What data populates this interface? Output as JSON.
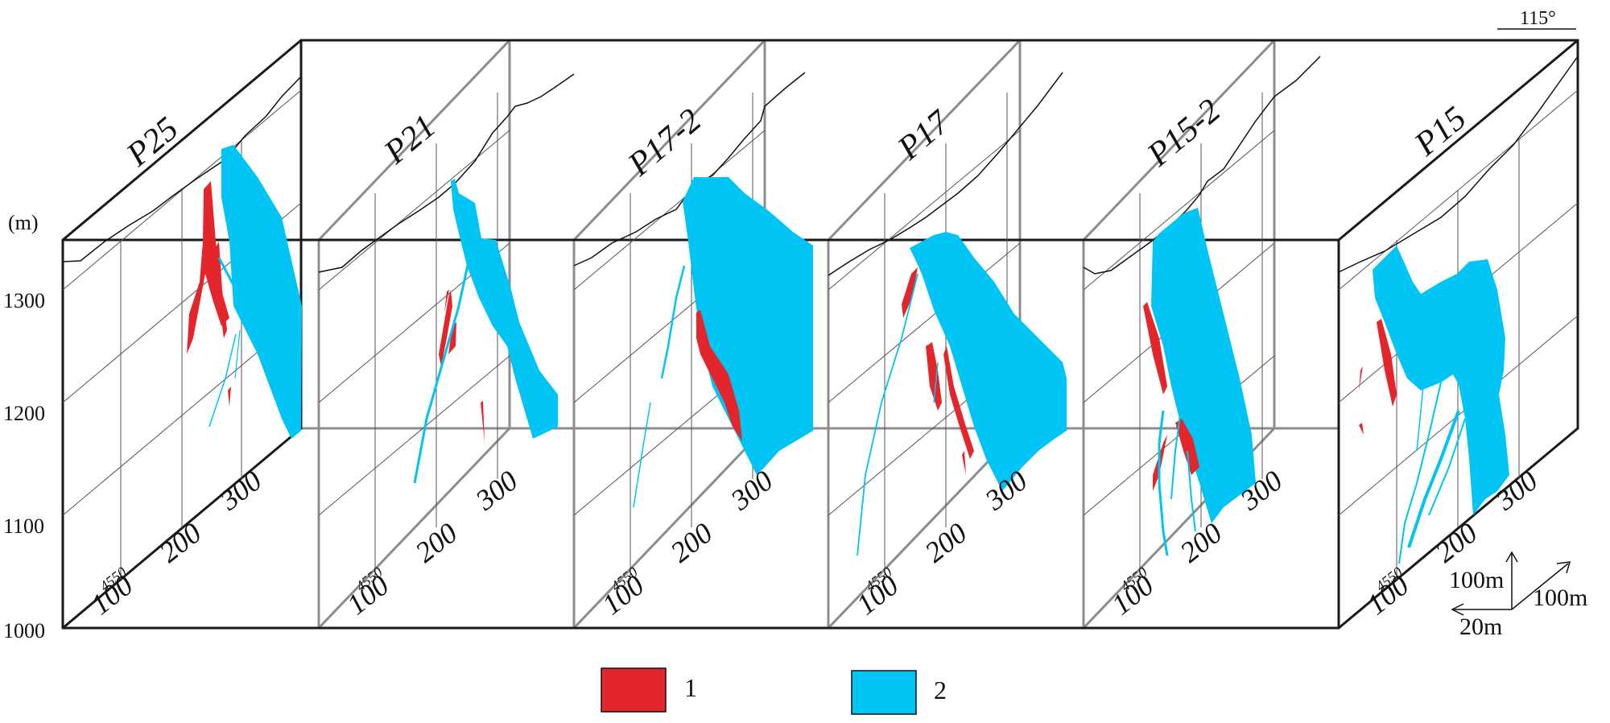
{
  "figure": {
    "unit_label": "(m)",
    "elevation_ticks": [
      "1300",
      "1200",
      "1100",
      "1000"
    ],
    "orientation_label": "115°",
    "sections": [
      {
        "name": "P25",
        "line_label": "4550",
        "distance_ticks": [
          "100",
          "200",
          "300"
        ]
      },
      {
        "name": "P21",
        "line_label": "4550",
        "distance_ticks": [
          "100",
          "200",
          "300"
        ]
      },
      {
        "name": "P17-2",
        "line_label": "4550",
        "distance_ticks": [
          "100",
          "200",
          "300"
        ]
      },
      {
        "name": "P17",
        "line_label": "4550",
        "distance_ticks": [
          "100",
          "200",
          "300"
        ]
      },
      {
        "name": "P15-2",
        "line_label": "4550",
        "distance_ticks": [
          "100",
          "200",
          "300"
        ]
      },
      {
        "name": "P15",
        "line_label": "4550",
        "distance_ticks": [
          "100",
          "200",
          "300"
        ]
      }
    ],
    "scale": {
      "vertical": "100m",
      "depth": "100m",
      "horizontal": "20m"
    },
    "legend": [
      {
        "label": "1",
        "color": "#e3262b"
      },
      {
        "label": "2",
        "color": "#00c4f4"
      }
    ],
    "colors": {
      "ore_red": "#e3262b",
      "ore_blue": "#00c4f4",
      "frame_dark": "#1a1a1a",
      "frame_gray": "#8c8c8c"
    }
  }
}
